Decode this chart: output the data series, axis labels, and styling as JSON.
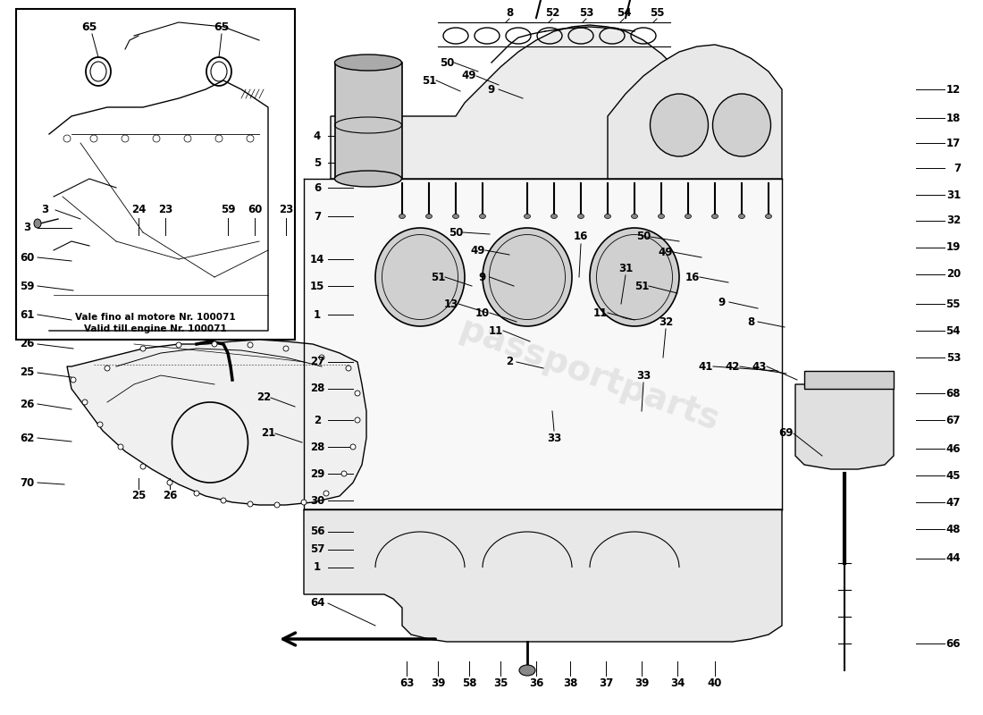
{
  "background_color": "#ffffff",
  "watermark_text": "passportparts",
  "inset_label_line1": "Vale fino al motore Nr. 100071",
  "inset_label_line2": "Valid till engine Nr. 100071",
  "fig_width": 11.0,
  "fig_height": 8.0,
  "dpi": 100
}
